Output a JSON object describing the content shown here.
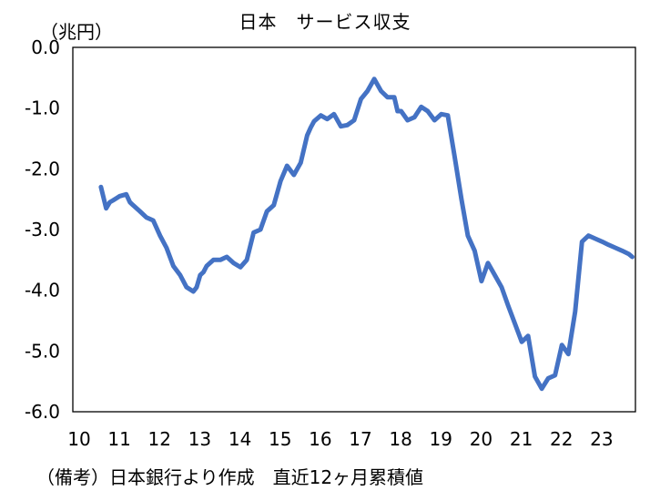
{
  "chart_data": {
    "type": "line",
    "title": "日本　サービス収支",
    "unit_label": "（兆円）",
    "note": "（備考）日本銀行より作成　直近12ヶ月累積値",
    "xlim": [
      10,
      24
    ],
    "ylim": [
      -6,
      0
    ],
    "x_ticks": [
      "10",
      "11",
      "12",
      "13",
      "14",
      "15",
      "16",
      "17",
      "18",
      "19",
      "20",
      "21",
      "22",
      "23"
    ],
    "y_ticks": [
      "0.0",
      "-1.0",
      "-2.0",
      "-3.0",
      "-4.0",
      "-5.0",
      "-6.0"
    ],
    "grid": false,
    "line_color": "#4472C4",
    "series": [
      {
        "x": [
          10.7,
          10.83,
          10.92,
          11.0,
          11.17,
          11.33,
          11.42,
          11.5,
          11.67,
          11.83,
          12.0,
          12.17,
          12.33,
          12.5,
          12.67,
          12.83,
          13.0,
          13.08,
          13.17,
          13.25,
          13.33,
          13.5,
          13.67,
          13.83,
          14.0,
          14.17,
          14.33,
          14.5,
          14.67,
          14.83,
          15.0,
          15.17,
          15.33,
          15.5,
          15.67,
          15.83,
          15.92,
          16.0,
          16.17,
          16.33,
          16.5,
          16.67,
          16.83,
          17.0,
          17.17,
          17.33,
          17.5,
          17.67,
          17.83,
          18.0,
          18.08,
          18.17,
          18.33,
          18.5,
          18.67,
          18.83,
          19.0,
          19.17,
          19.33,
          19.5,
          19.67,
          19.83,
          20.0,
          20.17,
          20.33,
          20.5,
          20.67,
          20.83,
          21.0,
          21.17,
          21.33,
          21.5,
          21.67,
          21.83,
          22.0,
          22.17,
          22.33,
          22.5,
          22.67,
          22.83,
          23.0,
          23.17,
          23.33,
          23.5,
          23.67,
          23.83,
          23.92
        ],
        "y": [
          -2.3,
          -2.65,
          -2.55,
          -2.52,
          -2.45,
          -2.42,
          -2.55,
          -2.6,
          -2.7,
          -2.8,
          -2.85,
          -3.1,
          -3.3,
          -3.6,
          -3.75,
          -3.95,
          -4.02,
          -3.95,
          -3.75,
          -3.7,
          -3.6,
          -3.5,
          -3.5,
          -3.45,
          -3.55,
          -3.62,
          -3.5,
          -3.05,
          -3.0,
          -2.7,
          -2.6,
          -2.2,
          -1.95,
          -2.1,
          -1.9,
          -1.45,
          -1.32,
          -1.22,
          -1.12,
          -1.18,
          -1.1,
          -1.3,
          -1.28,
          -1.2,
          -0.85,
          -0.72,
          -0.52,
          -0.72,
          -0.82,
          -0.82,
          -1.05,
          -1.05,
          -1.2,
          -1.15,
          -0.98,
          -1.05,
          -1.2,
          -1.1,
          -1.12,
          -1.8,
          -2.5,
          -3.1,
          -3.35,
          -3.85,
          -3.55,
          -3.75,
          -3.95,
          -4.25,
          -4.55,
          -4.85,
          -4.75,
          -5.42,
          -5.62,
          -5.45,
          -5.4,
          -4.9,
          -5.05,
          -4.35,
          -3.2,
          -3.1,
          -3.15,
          -3.2,
          -3.25,
          -3.3,
          -3.35,
          -3.4,
          -3.45
        ]
      }
    ]
  }
}
